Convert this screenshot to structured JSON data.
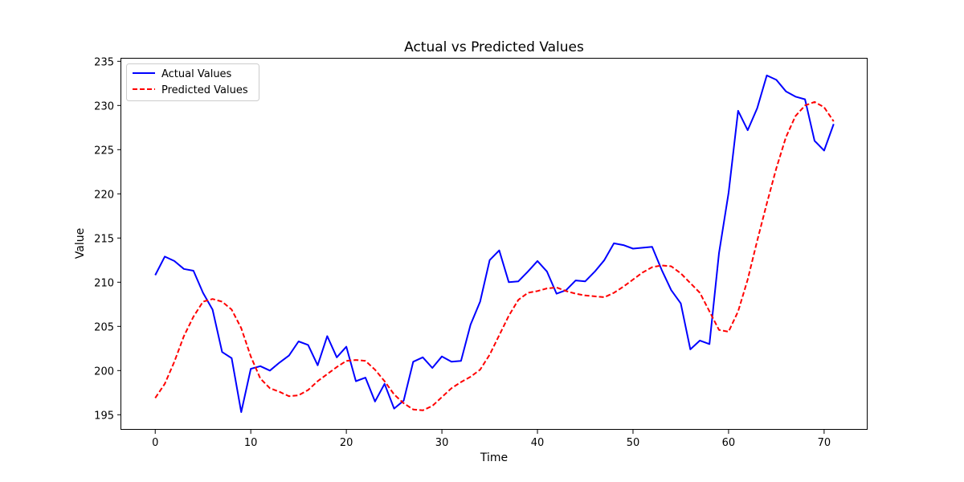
{
  "chart_data": {
    "type": "line",
    "title": "Actual vs Predicted Values",
    "xlabel": "Time",
    "ylabel": "Value",
    "xlim": [
      -3.55,
      74.55
    ],
    "ylim": [
      193.3,
      235.3
    ],
    "xticks": [
      0,
      10,
      20,
      30,
      40,
      50,
      60,
      70
    ],
    "yticks": [
      195,
      200,
      205,
      210,
      215,
      220,
      225,
      230,
      235
    ],
    "legend_position": "upper left",
    "grid": false,
    "series": [
      {
        "name": "Actual Values",
        "color": "#0000ff",
        "style": "solid",
        "x": [
          0,
          1,
          2,
          3,
          4,
          5,
          6,
          7,
          8,
          9,
          10,
          11,
          12,
          13,
          14,
          15,
          16,
          17,
          18,
          19,
          20,
          21,
          22,
          23,
          24,
          25,
          26,
          27,
          28,
          29,
          30,
          31,
          32,
          33,
          34,
          35,
          36,
          37,
          38,
          39,
          40,
          41,
          42,
          43,
          44,
          45,
          46,
          47,
          48,
          49,
          50,
          51,
          52,
          53,
          54,
          55,
          56,
          57,
          58,
          59,
          60,
          61,
          62,
          63,
          64,
          65,
          66,
          67,
          68,
          69,
          70,
          71
        ],
        "values": [
          210.8,
          212.9,
          212.4,
          211.5,
          211.3,
          208.8,
          206.9,
          202.1,
          201.4,
          195.3,
          200.2,
          200.5,
          200.0,
          200.9,
          201.7,
          203.3,
          202.9,
          200.6,
          203.9,
          201.5,
          202.7,
          198.8,
          199.2,
          196.5,
          198.5,
          195.7,
          196.6,
          201.0,
          201.5,
          200.3,
          201.6,
          201.0,
          201.1,
          205.2,
          207.8,
          212.5,
          213.6,
          210.0,
          210.1,
          211.2,
          212.4,
          211.2,
          208.7,
          209.1,
          210.2,
          210.1,
          211.2,
          212.5,
          214.4,
          214.2,
          213.8,
          213.9,
          214.0,
          211.4,
          209.1,
          207.6,
          202.4,
          203.4,
          203.0,
          213.3,
          220.1,
          229.4,
          227.2,
          229.7,
          233.4,
          232.9,
          231.6,
          231.0,
          230.7,
          226.0,
          224.9,
          227.9
        ]
      },
      {
        "name": "Predicted Values",
        "color": "#ff0000",
        "style": "dashed",
        "x": [
          0,
          1,
          2,
          3,
          4,
          5,
          6,
          7,
          8,
          9,
          10,
          11,
          12,
          13,
          14,
          15,
          16,
          17,
          18,
          19,
          20,
          21,
          22,
          23,
          24,
          25,
          26,
          27,
          28,
          29,
          30,
          31,
          32,
          33,
          34,
          35,
          36,
          37,
          38,
          39,
          40,
          41,
          42,
          43,
          44,
          45,
          46,
          47,
          48,
          49,
          50,
          51,
          52,
          53,
          54,
          55,
          56,
          57,
          58,
          59,
          60,
          61,
          62,
          63,
          64,
          65,
          66,
          67,
          68,
          69,
          70,
          71
        ],
        "values": [
          196.9,
          198.5,
          201.0,
          203.9,
          206.1,
          207.8,
          208.1,
          207.8,
          206.9,
          204.8,
          201.6,
          199.1,
          198.0,
          197.6,
          197.1,
          197.2,
          197.8,
          198.8,
          199.6,
          200.4,
          201.1,
          201.2,
          201.1,
          200.1,
          198.8,
          197.3,
          196.3,
          195.6,
          195.5,
          196.0,
          197.0,
          198.0,
          198.7,
          199.3,
          200.1,
          201.8,
          204.0,
          206.2,
          208.0,
          208.8,
          209.0,
          209.3,
          209.4,
          209.0,
          208.7,
          208.5,
          208.4,
          208.3,
          208.8,
          209.5,
          210.3,
          211.1,
          211.7,
          211.9,
          211.8,
          211.0,
          209.9,
          208.8,
          206.7,
          204.6,
          204.4,
          206.7,
          210.3,
          214.7,
          218.9,
          222.9,
          226.4,
          228.8,
          230.0,
          230.4,
          229.8,
          228.2
        ]
      }
    ]
  }
}
